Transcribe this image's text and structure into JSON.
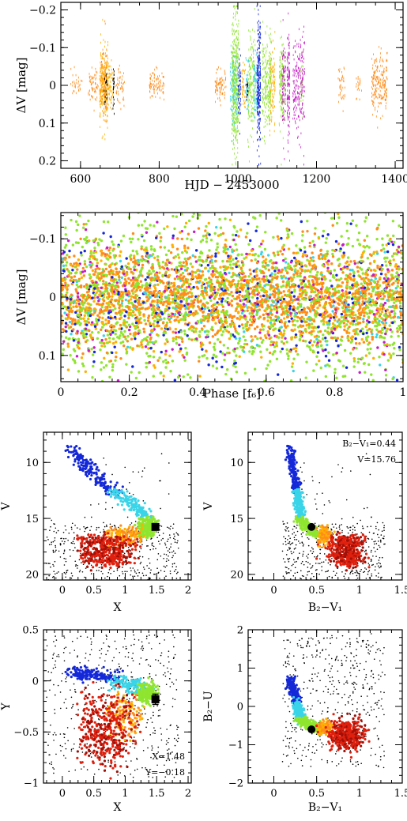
{
  "chart_data": [
    {
      "id": "lightcurve",
      "type": "scatter",
      "xlabel": "HJD − 2453000",
      "ylabel": "ΔV [mag]",
      "xlim": [
        550,
        1420
      ],
      "ylim": [
        0.22,
        -0.22
      ],
      "y_inverted": true,
      "x_ticks": [
        600,
        800,
        1000,
        1200,
        1400
      ],
      "x_tick_labels": [
        "600",
        "800",
        "1000",
        "1200",
        "1400"
      ],
      "y_ticks": [
        -0.2,
        -0.1,
        0,
        0.1,
        0.2
      ],
      "y_tick_labels": [
        "−0.2",
        "−0.1",
        "0",
        "0.1",
        "0.2"
      ],
      "series": [
        {
          "color": "#ff8c1a",
          "segments": [
            [
              575,
              605,
              0.035,
              30
            ],
            [
              620,
              645,
              0.05,
              60
            ],
            [
              650,
              668,
              0.09,
              180
            ],
            [
              690,
              712,
              0.05,
              50
            ],
            [
              775,
              812,
              0.04,
              90
            ],
            [
              940,
              970,
              0.05,
              80
            ],
            [
              1255,
              1272,
              0.06,
              40
            ],
            [
              1340,
              1380,
              0.09,
              200
            ],
            [
              1300,
              1315,
              0.04,
              20
            ]
          ]
        },
        {
          "color": "#ffb000",
          "segments": [
            [
              648,
              672,
              0.1,
              220
            ],
            [
              672,
              685,
              0.07,
              60
            ],
            [
              1080,
              1095,
              0.12,
              120
            ],
            [
              1010,
              1020,
              0.08,
              40
            ]
          ]
        },
        {
          "color": "#8fe52f",
          "segments": [
            [
              985,
              1002,
              0.2,
              420
            ],
            [
              1025,
              1045,
              0.14,
              200
            ],
            [
              1062,
              1085,
              0.13,
              220
            ],
            [
              1105,
              1118,
              0.13,
              150
            ],
            [
              1160,
              1166,
              0.08,
              30
            ]
          ]
        },
        {
          "color": "#3ad4e8",
          "segments": [
            [
              980,
              998,
              0.12,
              90
            ],
            [
              1040,
              1052,
              0.1,
              70
            ],
            [
              1020,
              1028,
              0.08,
              30
            ]
          ]
        },
        {
          "color": "#1428d8",
          "segments": [
            [
              1000,
              1008,
              0.1,
              60
            ],
            [
              1048,
              1058,
              0.18,
              240
            ]
          ]
        },
        {
          "color": "#c51ec5",
          "segments": [
            [
              1125,
              1132,
              0.16,
              120
            ],
            [
              1140,
              1170,
              0.16,
              200
            ],
            [
              1112,
              1122,
              0.12,
              80
            ]
          ]
        },
        {
          "color": "#000000",
          "segments": [
            [
              660,
              668,
              0.05,
              20
            ],
            [
              682,
              686,
              0.06,
              25
            ],
            [
              1022,
              1026,
              0.05,
              15
            ]
          ]
        }
      ]
    },
    {
      "id": "phase",
      "type": "scatter",
      "xlabel": "Phase [f₆]",
      "ylabel": "ΔV [mag]",
      "xlim": [
        0,
        1
      ],
      "ylim": [
        0.145,
        -0.145
      ],
      "y_inverted": true,
      "x_ticks": [
        0,
        0.2,
        0.4,
        0.6,
        0.8,
        1
      ],
      "x_tick_labels": [
        "0",
        "0.2",
        "0.4",
        "0.6",
        "0.8",
        "1"
      ],
      "y_ticks": [
        -0.1,
        0,
        0.1
      ],
      "y_tick_labels": [
        "−0.1",
        "0",
        "0.1"
      ],
      "series": [
        {
          "color": "#8fe52f",
          "count": 1600,
          "spread": 0.075
        },
        {
          "color": "#ffb000",
          "count": 600,
          "spread": 0.05
        },
        {
          "color": "#ff8c1a",
          "count": 1500,
          "spread": 0.04
        },
        {
          "color": "#1428d8",
          "count": 300,
          "spread": 0.06
        },
        {
          "color": "#c51ec5",
          "count": 250,
          "spread": 0.06
        },
        {
          "color": "#3ad4e8",
          "count": 200,
          "spread": 0.05
        }
      ]
    },
    {
      "id": "cmd-x",
      "type": "scatter",
      "xlabel": "X",
      "ylabel": "V",
      "xlim": [
        -0.3,
        2.05
      ],
      "ylim": [
        20.5,
        7.3
      ],
      "y_inverted": true,
      "x_ticks": [
        0,
        0.5,
        1,
        1.5,
        2
      ],
      "x_tick_labels": [
        "0",
        "0.5",
        "1",
        "1.5",
        "2"
      ],
      "y_ticks": [
        10,
        15,
        20
      ],
      "y_tick_labels": [
        "10",
        "15",
        "20"
      ],
      "marker": {
        "x": 1.48,
        "y": 15.76,
        "shape": "square"
      }
    },
    {
      "id": "cmd-bv",
      "type": "scatter",
      "xlabel": "B₂−V₁",
      "ylabel": "V",
      "xlim": [
        -0.3,
        1.5
      ],
      "ylim": [
        20.5,
        7.3
      ],
      "y_inverted": true,
      "x_ticks": [
        0,
        0.5,
        1,
        1.5
      ],
      "x_tick_labels": [
        "0",
        "0.5",
        "1",
        "1.5"
      ],
      "y_ticks": [
        10,
        15,
        20
      ],
      "y_tick_labels": [
        "10",
        "15",
        "20"
      ],
      "marker": {
        "x": 0.44,
        "y": 15.76,
        "shape": "circle"
      },
      "annotations": [
        "B₂−V₁=0.44",
        "V=15.76"
      ]
    },
    {
      "id": "ccd-xy",
      "type": "scatter",
      "xlabel": "X",
      "ylabel": "Y",
      "xlim": [
        -0.3,
        2.05
      ],
      "ylim": [
        -1,
        0.5
      ],
      "y_inverted": false,
      "x_ticks": [
        0,
        0.5,
        1,
        1.5,
        2
      ],
      "x_tick_labels": [
        "0",
        "0.5",
        "1",
        "1.5",
        "2"
      ],
      "y_ticks": [
        -1,
        -0.5,
        0,
        0.5
      ],
      "y_tick_labels": [
        "−1",
        "−0.5",
        "0",
        "0.5"
      ],
      "marker": {
        "x": 1.48,
        "y": -0.18,
        "shape": "square",
        "error": 0.05
      },
      "annotations": [
        "X=1.48",
        "Y=−0.18"
      ]
    },
    {
      "id": "ccd-bu",
      "type": "scatter",
      "xlabel": "B₂−V₁",
      "ylabel": "B₂−U",
      "xlim": [
        -0.3,
        1.5
      ],
      "ylim": [
        -2,
        2
      ],
      "y_inverted": false,
      "x_ticks": [
        0,
        0.5,
        1,
        1.5
      ],
      "x_tick_labels": [
        "0",
        "0.5",
        "1",
        "1.5"
      ],
      "y_ticks": [
        -2,
        -1,
        0,
        1,
        2
      ],
      "y_tick_labels": [
        "−2",
        "−1",
        "0",
        "1",
        "2"
      ],
      "marker": {
        "x": 0.44,
        "y": -0.6,
        "shape": "circle"
      }
    }
  ],
  "colors": {
    "orange": "#ff8c1a",
    "amber": "#ffb000",
    "green": "#8fe52f",
    "cyan": "#3ad4e8",
    "blue": "#1428d8",
    "magenta": "#c51ec5",
    "red": "#e0200e",
    "darkred": "#a01008",
    "black": "#000000"
  }
}
